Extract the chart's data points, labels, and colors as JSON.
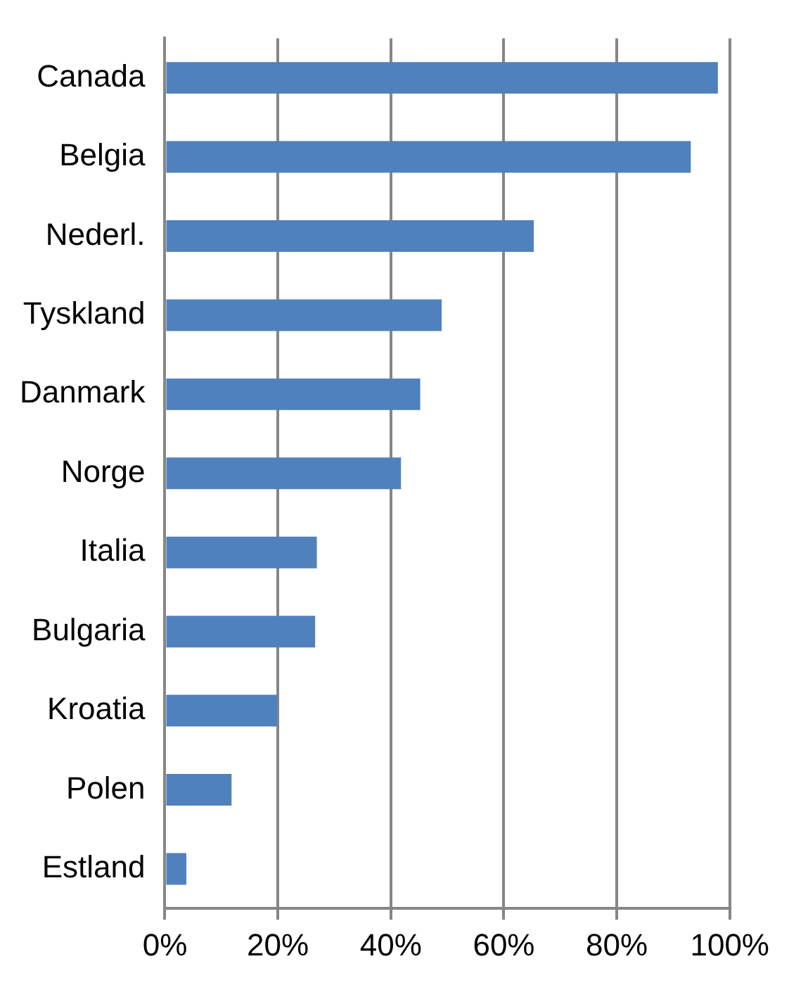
{
  "chart_data": {
    "type": "bar",
    "orientation": "horizontal",
    "categories": [
      "Canada",
      "Belgia",
      "Nederl.",
      "Tyskland",
      "Danmark",
      "Norge",
      "Italia",
      "Bulgaria",
      "Kroatia",
      "Polen",
      "Estland"
    ],
    "values": [
      97.9,
      93.1,
      65.3,
      49.0,
      45.2,
      41.8,
      26.9,
      26.6,
      19.9,
      11.8,
      3.8
    ],
    "color": "#4f81bd",
    "xlim": [
      0,
      100
    ],
    "xticks": [
      {
        "value": 0,
        "label": "0%"
      },
      {
        "value": 20,
        "label": "20%"
      },
      {
        "value": 40,
        "label": "40%"
      },
      {
        "value": 60,
        "label": "60%"
      },
      {
        "value": 80,
        "label": "80%"
      },
      {
        "value": 100,
        "label": "100%"
      }
    ],
    "grid": "x",
    "legend": false
  }
}
